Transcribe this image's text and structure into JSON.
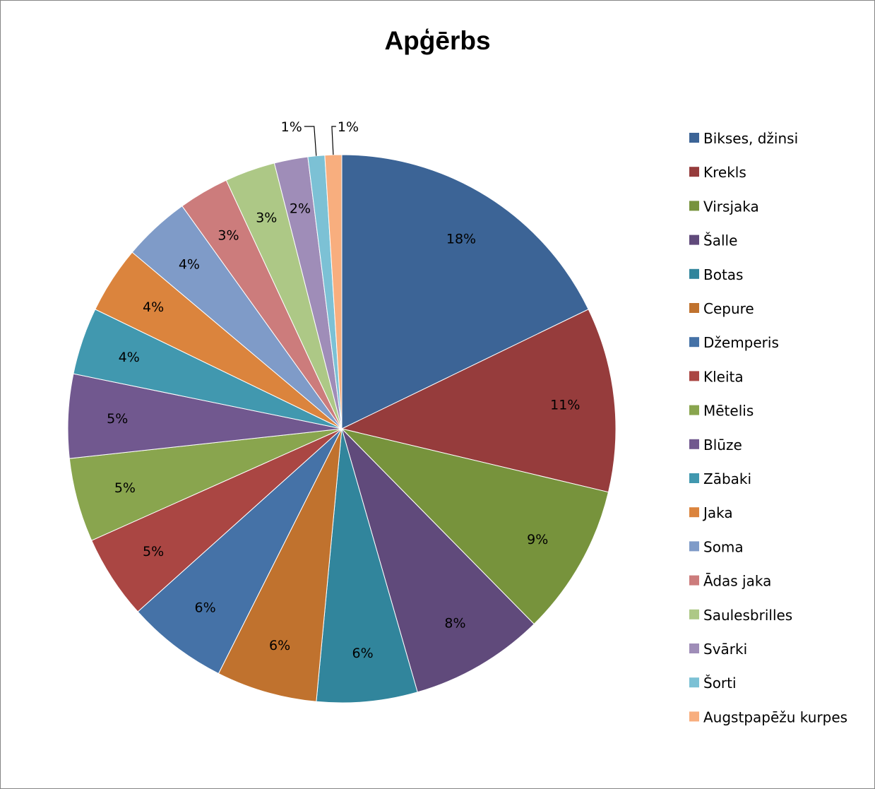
{
  "chart_data": {
    "type": "pie",
    "title": "Apģērbs",
    "legend_position": "right",
    "categories": [
      "Bikses, džinsi",
      "Krekls",
      "Virsjaka",
      "Šalle",
      "Botas",
      "Cepure",
      "Džemperis",
      "Kleita",
      "Mētelis",
      "Blūze",
      "Zābaki",
      "Jaka",
      "Soma",
      "Ādas jaka",
      "Saulesbrilles",
      "Svārki",
      "Šorti",
      "Augstpapēžu kurpes"
    ],
    "values": [
      18,
      11,
      9,
      8,
      6,
      6,
      6,
      5,
      5,
      5,
      4,
      4,
      4,
      3,
      3,
      2,
      1,
      1
    ],
    "data_labels": [
      "18%",
      "11%",
      "9%",
      "8%",
      "6%",
      "6%",
      "6%",
      "5%",
      "5%",
      "5%",
      "4%",
      "4%",
      "4%",
      "3%",
      "3%",
      "2%",
      "1%",
      "1%"
    ],
    "colors": [
      "#3C6496",
      "#963C3C",
      "#77933C",
      "#604A7B",
      "#31859C",
      "#C0722E",
      "#4572A7",
      "#AA4643",
      "#89A54E",
      "#71588F",
      "#4198AF",
      "#DB843D",
      "#7F9BC8",
      "#CC7C7C",
      "#ADC886",
      "#9F8DB8",
      "#7CC1D5",
      "#F8AE7E"
    ]
  }
}
